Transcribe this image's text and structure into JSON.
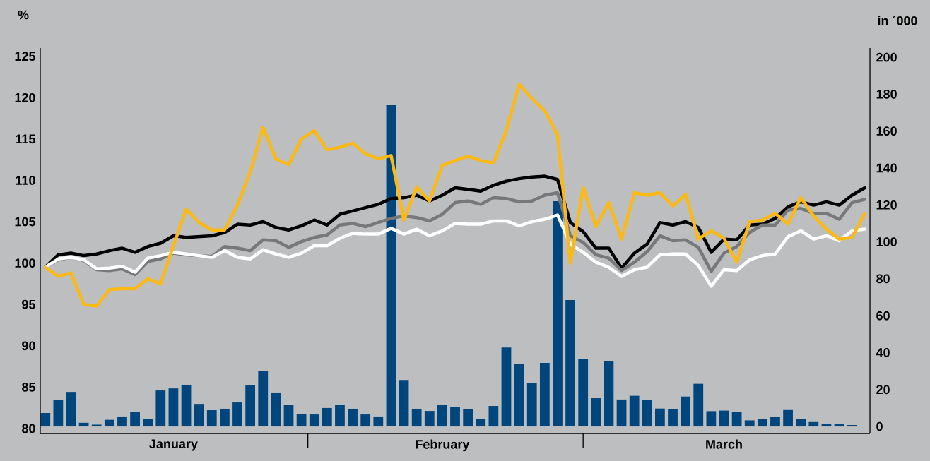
{
  "chart_data": {
    "type": "line",
    "ylabel": "%",
    "y2label": "in ´000",
    "categories": [
      null,
      null,
      null,
      null,
      null,
      null,
      null,
      null,
      null,
      null,
      "January",
      null,
      null,
      null,
      null,
      null,
      null,
      null,
      null,
      null,
      null,
      null,
      null,
      null,
      null,
      null,
      null,
      null,
      null,
      null,
      null,
      "February",
      null,
      null,
      null,
      null,
      null,
      null,
      null,
      null,
      null,
      null,
      null,
      null,
      null,
      null,
      null,
      null,
      null,
      null,
      null,
      null,
      null,
      "March",
      null,
      null,
      null,
      null,
      null,
      null,
      null,
      null,
      null,
      null,
      null
    ],
    "ylim": [
      79.4,
      126
    ],
    "yticks": [
      80,
      85,
      90,
      95,
      100,
      105,
      110,
      115,
      120,
      125
    ],
    "y2lim": [
      -3.8,
      205
    ],
    "y2ticks": [
      0,
      20,
      40,
      60,
      80,
      100,
      120,
      140,
      160,
      180,
      200
    ],
    "marker": "none",
    "line_style": "solid",
    "series": [
      {
        "type": "bar",
        "axis": "y2",
        "color": "#00457c",
        "values": [
          7.3,
          14.2,
          18.7,
          2,
          1,
          3.6,
          5.4,
          8,
          4.2,
          19.5,
          20.6,
          22.6,
          12.2,
          8.8,
          9.6,
          13,
          22.2,
          30.2,
          18.4,
          11.5,
          6.9,
          6.5,
          10,
          11.5,
          9.6,
          6.5,
          5.4,
          174,
          25.2,
          9.6,
          8.4,
          11.5,
          10.7,
          9.2,
          4.2,
          11.1,
          42.8,
          34,
          23.7,
          34.4,
          122,
          68.5,
          36.7,
          15.3,
          35.3,
          14.6,
          16.6,
          14.3,
          9.7,
          9.3,
          16.2,
          23.1,
          8.3,
          8.6,
          7.9,
          3.3,
          4.2,
          5.1,
          8.9,
          4.2,
          2.4,
          1.3,
          1.5,
          0.8,
          null
        ]
      },
      {
        "color": "#000000",
        "values": [
          99.5,
          101.0,
          101.2,
          100.9,
          101.1,
          101.5,
          101.8,
          101.3,
          102.0,
          102.4,
          103.3,
          103.1,
          103.2,
          103.3,
          103.7,
          104.7,
          104.6,
          105.0,
          104.3,
          104.0,
          104.5,
          105.2,
          104.6,
          105.9,
          106.3,
          106.7,
          107.1,
          107.8,
          107.9,
          108.2,
          107.5,
          108.2,
          109.1,
          108.9,
          108.7,
          109.4,
          109.9,
          110.2,
          110.4,
          110.5,
          110.1,
          104.9,
          103.8,
          101.8,
          101.8,
          99.4,
          101.2,
          102.3,
          104.9,
          104.6,
          105.0,
          104.3,
          101.3,
          102.9,
          102.8,
          104.6,
          104.7,
          105.4,
          106.8,
          107.4,
          107.0,
          107.4,
          107.0,
          108.2,
          109.1
        ]
      },
      {
        "color": "#77787b",
        "values": [
          99.5,
          100.4,
          100.7,
          100.3,
          99.2,
          99.1,
          99.3,
          98.6,
          100.2,
          100.5,
          101.2,
          101.0,
          null,
          100.8,
          102.0,
          101.8,
          101.5,
          102.8,
          102.7,
          101.9,
          102.6,
          103.1,
          103.4,
          104.6,
          104.8,
          104.4,
          104.9,
          105.4,
          105.7,
          105.5,
          105.1,
          105.9,
          107.3,
          107.5,
          107.1,
          107.9,
          107.8,
          107.4,
          107.5,
          108.2,
          108.5,
          103.3,
          102.5,
          101.0,
          100.6,
          99.1,
          100.1,
          101.4,
          103.3,
          102.7,
          102.8,
          101.9,
          99.0,
          101.2,
          102.0,
          103.7,
          104.6,
          104.6,
          106.4,
          106.6,
          106.0,
          106.0,
          105.3,
          107.3,
          107.7
        ]
      },
      {
        "color": "#ffffff",
        "values": [
          99.5,
          100.5,
          100.7,
          100.4,
          99.3,
          99.4,
          99.6,
          98.9,
          100.6,
          100.9,
          101.3,
          101.1,
          100.9,
          100.7,
          101.5,
          100.7,
          100.5,
          101.6,
          101.1,
          100.7,
          101.2,
          102.1,
          102.1,
          103.0,
          103.6,
          103.5,
          103.5,
          104.2,
          103.5,
          104.1,
          103.3,
          103.9,
          104.8,
          104.7,
          104.7,
          105.1,
          105.1,
          104.5,
          105.0,
          105.3,
          105.8,
          102.3,
          101.3,
          100.1,
          99.5,
          98.4,
          99.2,
          99.5,
          101.0,
          101.1,
          101.1,
          99.7,
          97.2,
          99.2,
          99.1,
          100.4,
          100.9,
          101.1,
          103.2,
          103.9,
          102.9,
          103.3,
          102.7,
          103.9,
          104.1
        ]
      },
      {
        "color": "#fdb913",
        "values": [
          99.5,
          98.4,
          98.8,
          95.0,
          94.8,
          96.8,
          96.9,
          96.9,
          98.1,
          97.5,
          102.1,
          106.5,
          104.9,
          104.0,
          104.0,
          107.0,
          111.0,
          116.4,
          112.6,
          111.9,
          115.0,
          116.0,
          113.7,
          114.0,
          114.5,
          113.2,
          112.6,
          113.0,
          105.2,
          109.2,
          107.5,
          111.8,
          112.4,
          112.9,
          112.4,
          112.1,
          116.0,
          121.6,
          119.9,
          118.4,
          115.5,
          100.0,
          109.1,
          104.4,
          107.3,
          102.9,
          108.5,
          108.2,
          108.5,
          106.9,
          108.3,
          102.9,
          103.9,
          103.0,
          100.1,
          105.0,
          105.2,
          106.0,
          104.7,
          107.9,
          105.7,
          104.1,
          102.9,
          103.1,
          106.0
        ]
      }
    ]
  }
}
